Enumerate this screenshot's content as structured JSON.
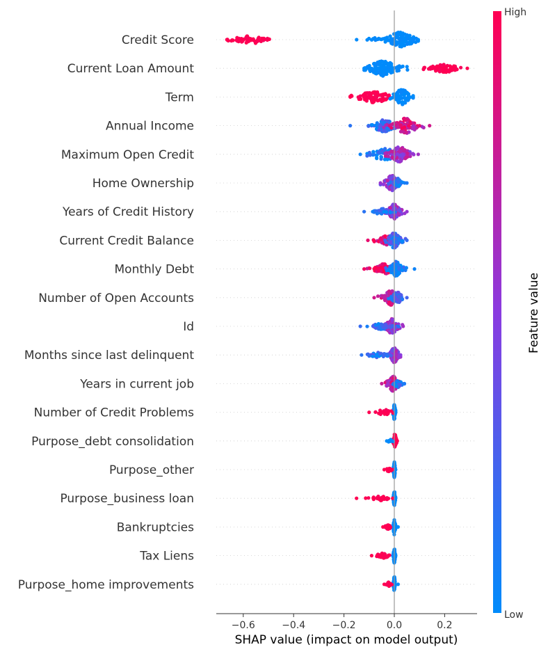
{
  "chart_data": {
    "type": "scatter",
    "subtype": "shap-beeswarm",
    "xlabel": "SHAP value (impact on model output)",
    "xlim": [
      -0.7,
      0.33
    ],
    "xticks": [
      -0.6,
      -0.4,
      -0.2,
      0.0,
      0.2
    ],
    "xtick_labels": [
      "−0.6",
      "−0.4",
      "−0.2",
      "0.0",
      "0.2"
    ],
    "colorbar": {
      "title": "Feature value",
      "high_label": "High",
      "low_label": "Low",
      "low_color": "#008bfb",
      "mid_color": "#8a3be0",
      "high_color": "#ff0052"
    },
    "features": [
      {
        "name": "Credit Score",
        "min": -0.665,
        "max": 0.095,
        "groups": [
          {
            "center": -0.57,
            "spread": 0.09,
            "n": 55,
            "width": 0.5,
            "value": 1.0
          },
          {
            "center": 0.025,
            "spread": 0.07,
            "n": 120,
            "width": 1.0,
            "value": 0.0
          },
          {
            "center": -0.08,
            "spread": 0.04,
            "n": 12,
            "width": 0.3,
            "value": 0.0
          }
        ]
      },
      {
        "name": "Current Loan Amount",
        "min": -0.12,
        "max": 0.29,
        "groups": [
          {
            "center": -0.045,
            "spread": 0.07,
            "n": 130,
            "width": 1.0,
            "value": 0.0
          },
          {
            "center": 0.2,
            "spread": 0.08,
            "n": 70,
            "width": 0.5,
            "value": 1.0
          }
        ]
      },
      {
        "name": "Term",
        "min": -0.175,
        "max": 0.075,
        "groups": [
          {
            "center": -0.08,
            "spread": 0.08,
            "n": 90,
            "width": 0.75,
            "value": 1.0
          },
          {
            "center": 0.03,
            "spread": 0.04,
            "n": 80,
            "width": 1.0,
            "value": 0.0
          }
        ]
      },
      {
        "name": "Annual Income",
        "min": -0.175,
        "max": 0.14,
        "groups": [
          {
            "center": -0.04,
            "spread": 0.06,
            "n": 90,
            "width": 0.8,
            "value": 0.15
          },
          {
            "center": 0.045,
            "spread": 0.06,
            "n": 100,
            "width": 1.0,
            "value": 0.8
          }
        ]
      },
      {
        "name": "Maximum Open Credit",
        "min": -0.135,
        "max": 0.095,
        "groups": [
          {
            "center": -0.04,
            "spread": 0.07,
            "n": 80,
            "width": 0.8,
            "value": 0.05
          },
          {
            "center": 0.02,
            "spread": 0.05,
            "n": 110,
            "width": 1.0,
            "value": 0.6
          }
        ]
      },
      {
        "name": "Home Ownership",
        "min": -0.055,
        "max": 0.05,
        "groups": [
          {
            "center": -0.01,
            "spread": 0.03,
            "n": 110,
            "width": 1.0,
            "value": 0.55
          },
          {
            "center": 0.015,
            "spread": 0.02,
            "n": 40,
            "width": 0.6,
            "value": 0.1
          }
        ]
      },
      {
        "name": "Years of Credit History",
        "min": -0.12,
        "max": 0.05,
        "groups": [
          {
            "center": 0.0,
            "spread": 0.03,
            "n": 110,
            "width": 1.0,
            "value": 0.55
          },
          {
            "center": -0.05,
            "spread": 0.04,
            "n": 35,
            "width": 0.4,
            "value": 0.15
          }
        ]
      },
      {
        "name": "Current Credit Balance",
        "min": -0.105,
        "max": 0.05,
        "groups": [
          {
            "center": -0.03,
            "spread": 0.04,
            "n": 70,
            "width": 0.6,
            "value": 0.9
          },
          {
            "center": 0.0,
            "spread": 0.03,
            "n": 90,
            "width": 1.0,
            "value": 0.2
          }
        ]
      },
      {
        "name": "Monthly Debt",
        "min": -0.12,
        "max": 0.08,
        "groups": [
          {
            "center": -0.04,
            "spread": 0.045,
            "n": 90,
            "width": 0.7,
            "value": 0.95
          },
          {
            "center": 0.005,
            "spread": 0.03,
            "n": 100,
            "width": 1.0,
            "value": 0.05
          }
        ]
      },
      {
        "name": "Number of Open Accounts",
        "min": -0.08,
        "max": 0.05,
        "groups": [
          {
            "center": -0.015,
            "spread": 0.03,
            "n": 90,
            "width": 1.0,
            "value": 0.8
          },
          {
            "center": 0.01,
            "spread": 0.025,
            "n": 70,
            "width": 0.8,
            "value": 0.25
          }
        ]
      },
      {
        "name": "Id",
        "min": -0.135,
        "max": 0.035,
        "groups": [
          {
            "center": -0.01,
            "spread": 0.03,
            "n": 100,
            "width": 1.0,
            "value": 0.6
          },
          {
            "center": -0.05,
            "spread": 0.05,
            "n": 40,
            "width": 0.4,
            "value": 0.2
          }
        ]
      },
      {
        "name": "Months since last delinquent",
        "min": -0.13,
        "max": 0.025,
        "groups": [
          {
            "center": 0.0,
            "spread": 0.02,
            "n": 110,
            "width": 1.0,
            "value": 0.5
          },
          {
            "center": -0.06,
            "spread": 0.05,
            "n": 40,
            "width": 0.35,
            "value": 0.15
          }
        ]
      },
      {
        "name": "Years in current job",
        "min": -0.05,
        "max": 0.04,
        "groups": [
          {
            "center": -0.005,
            "spread": 0.025,
            "n": 110,
            "width": 1.0,
            "value": 0.75
          },
          {
            "center": 0.015,
            "spread": 0.02,
            "n": 40,
            "width": 0.5,
            "value": 0.1
          }
        ]
      },
      {
        "name": "Number of Credit Problems",
        "min": -0.1,
        "max": 0.005,
        "groups": [
          {
            "center": 0.0,
            "spread": 0.005,
            "n": 70,
            "width": 1.0,
            "value": 0.0
          },
          {
            "center": -0.04,
            "spread": 0.04,
            "n": 30,
            "width": 0.35,
            "value": 1.0
          }
        ]
      },
      {
        "name": "Purpose_debt consolidation",
        "min": -0.03,
        "max": 0.012,
        "groups": [
          {
            "center": 0.002,
            "spread": 0.006,
            "n": 80,
            "width": 1.0,
            "value": 1.0
          },
          {
            "center": -0.015,
            "spread": 0.01,
            "n": 12,
            "width": 0.3,
            "value": 0.0
          }
        ]
      },
      {
        "name": "Purpose_other",
        "min": -0.04,
        "max": 0.005,
        "groups": [
          {
            "center": 0.0,
            "spread": 0.004,
            "n": 80,
            "width": 1.0,
            "value": 0.0
          },
          {
            "center": -0.02,
            "spread": 0.015,
            "n": 14,
            "width": 0.3,
            "value": 1.0
          }
        ]
      },
      {
        "name": "Purpose_business loan",
        "min": -0.15,
        "max": 0.005,
        "groups": [
          {
            "center": 0.0,
            "spread": 0.004,
            "n": 80,
            "width": 1.0,
            "value": 0.0
          },
          {
            "center": -0.055,
            "spread": 0.04,
            "n": 30,
            "width": 0.3,
            "value": 1.0
          }
        ]
      },
      {
        "name": "Bankruptcies",
        "min": -0.045,
        "max": 0.015,
        "groups": [
          {
            "center": 0.0,
            "spread": 0.005,
            "n": 80,
            "width": 1.0,
            "value": 0.0
          },
          {
            "center": -0.025,
            "spread": 0.015,
            "n": 16,
            "width": 0.3,
            "value": 1.0
          }
        ]
      },
      {
        "name": "Tax Liens",
        "min": -0.09,
        "max": 0.005,
        "groups": [
          {
            "center": 0.0,
            "spread": 0.004,
            "n": 80,
            "width": 1.0,
            "value": 0.0
          },
          {
            "center": -0.045,
            "spread": 0.03,
            "n": 30,
            "width": 0.35,
            "value": 1.0
          }
        ]
      },
      {
        "name": "Purpose_home improvements",
        "min": -0.04,
        "max": 0.015,
        "groups": [
          {
            "center": 0.0,
            "spread": 0.004,
            "n": 80,
            "width": 1.0,
            "value": 0.0
          },
          {
            "center": -0.02,
            "spread": 0.015,
            "n": 16,
            "width": 0.3,
            "value": 1.0
          }
        ]
      }
    ]
  }
}
